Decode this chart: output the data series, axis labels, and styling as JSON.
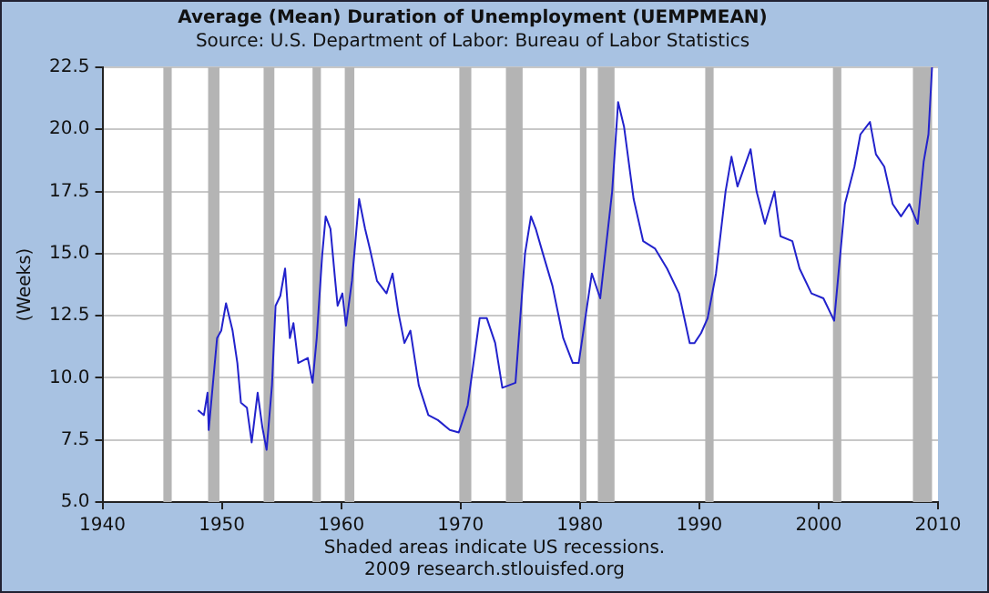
{
  "chart_data": {
    "type": "line",
    "title": "Average (Mean) Duration of Unemployment (UEMPMEAN)",
    "subtitle": "Source: U.S. Department of Labor: Bureau of Labor Statistics",
    "ylabel": "(Weeks)",
    "annotations": [
      "Shaded areas indicate US recessions.",
      "2009 research.stlouisfed.org"
    ],
    "x": [
      1948.0,
      1948.5,
      1948.8,
      1948.9,
      1949.6,
      1949.95,
      1950.35,
      1950.9,
      1951.3,
      1951.6,
      1952.1,
      1952.5,
      1953.0,
      1953.4,
      1953.75,
      1954.2,
      1954.5,
      1954.9,
      1955.3,
      1955.7,
      1956.0,
      1956.4,
      1957.2,
      1957.6,
      1957.95,
      1958.4,
      1958.7,
      1959.1,
      1959.5,
      1959.7,
      1960.1,
      1960.4,
      1960.9,
      1961.5,
      1962.0,
      1962.4,
      1963.0,
      1963.8,
      1964.3,
      1964.8,
      1965.3,
      1965.8,
      1966.5,
      1967.3,
      1968.1,
      1969.1,
      1969.85,
      1970.6,
      1971.6,
      1972.2,
      1972.9,
      1973.5,
      1974.6,
      1975.4,
      1975.9,
      1976.3,
      1976.9,
      1977.7,
      1978.6,
      1979.4,
      1979.9,
      1981.0,
      1981.7,
      1982.7,
      1983.2,
      1983.7,
      1984.5,
      1985.3,
      1986.3,
      1987.3,
      1988.3,
      1989.2,
      1989.6,
      1990.15,
      1990.7,
      1991.4,
      1992.2,
      1992.7,
      1993.2,
      1994.3,
      1994.8,
      1995.5,
      1996.3,
      1996.8,
      1997.8,
      1998.4,
      1999.4,
      2000.4,
      2001.3,
      2002.2,
      2003.0,
      2003.5,
      2004.3,
      2004.8,
      2005.5,
      2006.2,
      2006.9,
      2007.6,
      2008.3,
      2008.8,
      2009.2,
      2009.5
    ],
    "series": [
      {
        "color": "#2222cc",
        "values": [
          8.7,
          8.5,
          9.4,
          7.9,
          11.6,
          11.9,
          13.0,
          11.9,
          10.6,
          9.0,
          8.8,
          7.4,
          9.4,
          8.0,
          7.1,
          9.7,
          12.9,
          13.3,
          14.4,
          11.6,
          12.2,
          10.6,
          10.8,
          9.8,
          11.6,
          14.9,
          16.5,
          16.0,
          13.9,
          12.9,
          13.4,
          12.1,
          13.9,
          17.2,
          16.0,
          15.2,
          13.9,
          13.4,
          14.2,
          12.6,
          11.4,
          11.9,
          9.7,
          8.5,
          8.3,
          7.9,
          7.8,
          8.9,
          12.4,
          12.4,
          11.4,
          9.6,
          9.8,
          15.0,
          16.5,
          16.0,
          15.0,
          13.7,
          11.6,
          10.6,
          10.6,
          14.2,
          13.2,
          17.5,
          21.1,
          20.1,
          17.2,
          15.5,
          15.2,
          14.4,
          13.4,
          11.4,
          11.4,
          11.8,
          12.4,
          14.2,
          17.5,
          18.9,
          17.7,
          19.2,
          17.5,
          16.2,
          17.5,
          15.7,
          15.5,
          14.4,
          13.4,
          13.2,
          12.3,
          17.0,
          18.5,
          19.8,
          20.3,
          19.0,
          18.5,
          17.0,
          16.5,
          17.0,
          16.2,
          18.7,
          19.8,
          22.5
        ]
      }
    ],
    "xlim": [
      1940,
      2010
    ],
    "xticks": [
      1940,
      1950,
      1960,
      1970,
      1980,
      1990,
      2000,
      2010
    ],
    "ylim": [
      5,
      22.5
    ],
    "yticks": [
      {
        "value": 5,
        "label": "5.0"
      },
      7.5,
      {
        "value": 10,
        "label": "10.0"
      },
      12.5,
      {
        "value": 15,
        "label": "15.0"
      },
      17.5,
      {
        "value": 20,
        "label": "20.0"
      },
      22.5
    ],
    "bands": [
      {
        "axis": "x",
        "from": 1945.1,
        "to": 1945.8,
        "color": "#b4b4b4"
      },
      {
        "axis": "x",
        "from": 1948.85,
        "to": 1949.8,
        "color": "#b4b4b4"
      },
      {
        "axis": "x",
        "from": 1953.5,
        "to": 1954.4,
        "color": "#b4b4b4"
      },
      {
        "axis": "x",
        "from": 1957.6,
        "to": 1958.3,
        "color": "#b4b4b4"
      },
      {
        "axis": "x",
        "from": 1960.3,
        "to": 1961.1,
        "color": "#b4b4b4"
      },
      {
        "axis": "x",
        "from": 1969.9,
        "to": 1970.9,
        "color": "#b4b4b4"
      },
      {
        "axis": "x",
        "from": 1973.8,
        "to": 1975.2,
        "color": "#b4b4b4"
      },
      {
        "axis": "x",
        "from": 1980.0,
        "to": 1980.55,
        "color": "#b4b4b4"
      },
      {
        "axis": "x",
        "from": 1981.5,
        "to": 1982.9,
        "color": "#b4b4b4"
      },
      {
        "axis": "x",
        "from": 1990.5,
        "to": 1991.2,
        "color": "#b4b4b4"
      },
      {
        "axis": "x",
        "from": 2001.2,
        "to": 2001.9,
        "color": "#b4b4b4"
      },
      {
        "axis": "x",
        "from": 2007.9,
        "to": 2009.5,
        "color": "#b4b4b4"
      }
    ],
    "grid": "y",
    "legend": false
  }
}
